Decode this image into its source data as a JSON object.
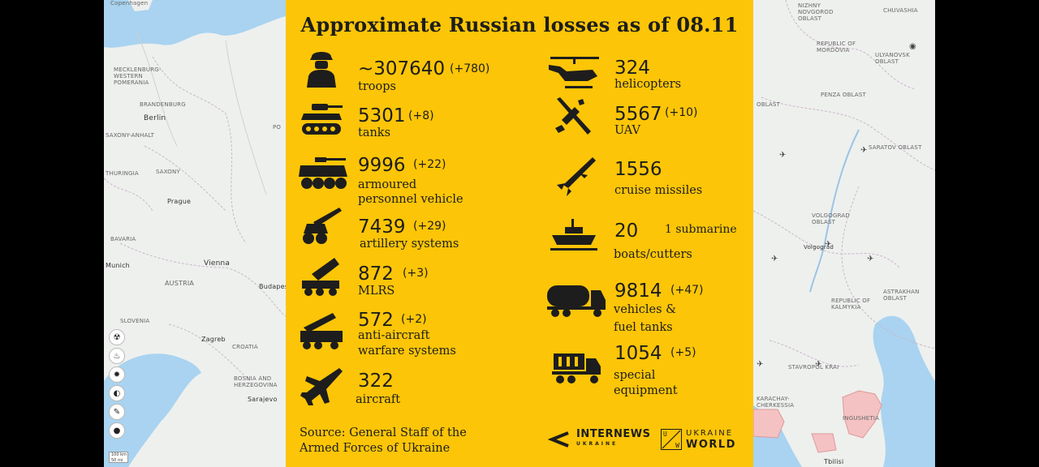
{
  "infographic": {
    "title": "Approximate Russian losses as of 08.11",
    "source": [
      "Source: General Staff of the",
      "Armed Forces of Ukraine"
    ],
    "logos": {
      "internews": {
        "main": "INTERNEWS",
        "sub": "UKRAINE"
      },
      "ukraine_world": {
        "line1": "UKRAINE",
        "line2": "WORLD",
        "box_letters": [
          "U",
          "W"
        ]
      }
    },
    "left_items": [
      {
        "value": "~307640",
        "delta": "(+780)",
        "label": [
          "troops"
        ],
        "icon": "soldier-icon"
      },
      {
        "value": "5301",
        "delta": "(+8)",
        "label": [
          "tanks"
        ],
        "icon": "tank-icon"
      },
      {
        "value": "9996",
        "delta": "(+22)",
        "label": [
          "armoured",
          "personnel vehicle"
        ],
        "icon": "apc-icon"
      },
      {
        "value": "7439",
        "delta": "(+29)",
        "label": [
          "artillery systems"
        ],
        "icon": "artillery-icon"
      },
      {
        "value": "872",
        "delta": "(+3)",
        "label": [
          "MLRS"
        ],
        "icon": "mlrs-icon"
      },
      {
        "value": "572",
        "delta": "(+2)",
        "label": [
          "anti-aircraft",
          "warfare systems"
        ],
        "icon": "anti-aircraft-icon"
      },
      {
        "value": "322",
        "delta": "",
        "label": [
          "aircraft"
        ],
        "icon": "aircraft-icon"
      }
    ],
    "right_items": [
      {
        "value": "324",
        "delta": "",
        "label": [
          "helicopters"
        ],
        "icon": "helicopter-icon"
      },
      {
        "value": "5567",
        "delta": "(+10)",
        "label": [
          "UAV"
        ],
        "icon": "drone-icon"
      },
      {
        "value": "1556",
        "delta": "",
        "label": [
          "cruise missiles"
        ],
        "icon": "missile-icon"
      },
      {
        "value": "20",
        "delta": "",
        "label": [
          "boats/cutters"
        ],
        "icon": "boat-icon",
        "note": "1 submarine"
      },
      {
        "value": "9814",
        "delta": "(+47)",
        "label": [
          "vehicles &",
          "fuel tanks"
        ],
        "icon": "fuel-truck-icon"
      },
      {
        "value": "1054",
        "delta": "(+5)",
        "label": [
          "special",
          "equipment"
        ],
        "icon": "special-truck-icon"
      }
    ]
  },
  "map_left": {
    "labels": [
      "Copenhagen",
      "MECKLENBURG-WESTERN POMERANIA",
      "BRANDENBURG",
      "Berlin",
      "SAXONY-ANHALT",
      "SAXONY",
      "THURINGIA",
      "Prague",
      "BAVARIA",
      "Munich",
      "Vienna",
      "AUSTRIA",
      "Budapest",
      "Zagreb",
      "CROATIA",
      "SLOVENIA",
      "Sarajevo",
      "BOSNIA AND HERZEGOVINA",
      "PO"
    ],
    "scale": [
      "100 km",
      "50 mi"
    ]
  },
  "map_right": {
    "labels": [
      "NIZHNY NOVGOROD OBLAST",
      "CHUVASHIA",
      "REPUBLIC OF MORDOVIA",
      "ULYANOVSK OBLAST",
      "PENZA OBLAST",
      "SARATOV OBLAST",
      "VOLGOGRAD OBLAST",
      "Volgograd",
      "ASTRAKHAN OBLAST",
      "REPUBLIC OF KALMYKIA",
      "STAVROPOL KRAI",
      "KARACHAY-CHERKESSIA",
      "INGUSHETIA",
      "Tbilisi",
      "OBLAST"
    ]
  },
  "colors": {
    "panel": "#fcc507",
    "ink": "#1d1d1d",
    "map_water": "#a9d3f0",
    "map_land": "#eef0ee"
  }
}
